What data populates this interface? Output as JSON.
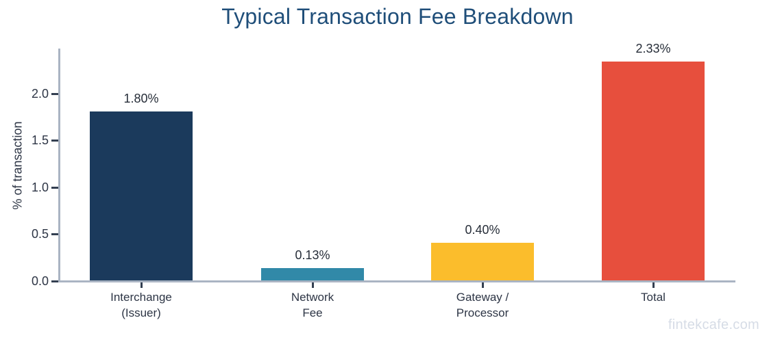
{
  "title": "Typical Transaction Fee Breakdown",
  "watermark": "fintekcafe.com",
  "chart_data": {
    "type": "bar",
    "title": "Typical Transaction Fee Breakdown",
    "xlabel": "",
    "ylabel": "% of transaction",
    "categories": [
      "Interchange\n(Issuer)",
      "Network\nFee",
      "Gateway /\nProcessor",
      "Total"
    ],
    "values": [
      1.8,
      0.13,
      0.4,
      2.33
    ],
    "value_labels": [
      "1.80%",
      "0.13%",
      "0.40%",
      "2.33%"
    ],
    "bar_colors": [
      "#1b3a5c",
      "#3189a8",
      "#fbbd2c",
      "#e74f3d"
    ],
    "yticks": {
      "values": [
        0.0,
        0.5,
        1.0,
        1.5,
        2.0
      ],
      "labels": [
        "0.0",
        "0.5",
        "1.0",
        "1.5",
        "2.0"
      ]
    },
    "ylim": [
      0,
      2.47
    ],
    "grid": false,
    "legend": "none"
  },
  "colors": {
    "title": "#1f4e79",
    "tick_text": "#2d3545",
    "value_text": "#262d38",
    "axis": "#aab4c3",
    "tick_mark": "#333f51",
    "watermark": "#d6dce6",
    "background": "#ffffff"
  }
}
